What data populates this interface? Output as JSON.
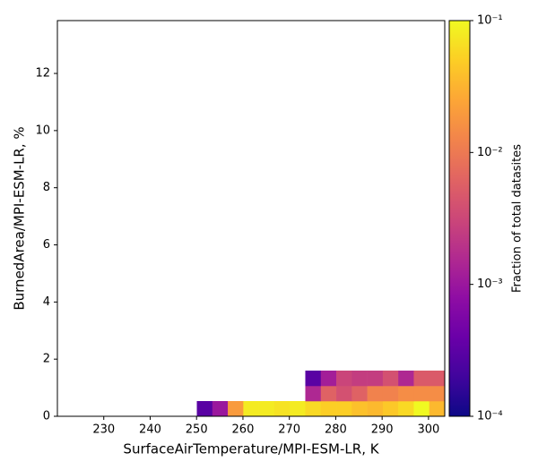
{
  "chart_data": {
    "type": "hist2d",
    "xlabel": "SurfaceAirTemperature/MPI-ESM-LR,  K",
    "ylabel": "BurnedArea/MPI-ESM-LR,  %",
    "colorbar_label": "Fraction of total datasites",
    "xlim": [
      220,
      303.5
    ],
    "ylim": [
      0,
      13.85
    ],
    "xticks": [
      230,
      240,
      250,
      260,
      270,
      280,
      290,
      300
    ],
    "yticks": [
      0,
      2,
      4,
      6,
      8,
      10,
      12
    ],
    "xbins": [
      250.06,
      253.4,
      256.74,
      260.08,
      263.42,
      266.76,
      270.1,
      273.44,
      276.78,
      280.12,
      283.46,
      286.8,
      290.14,
      293.48,
      296.82,
      300.16,
      303.5
    ],
    "ybins": [
      0,
      0.533,
      1.066,
      1.6
    ],
    "values": [
      [
        0.0003,
        0.001,
        0.02,
        0.08,
        0.08,
        0.07,
        0.08,
        0.06,
        0.05,
        0.05,
        0.04,
        0.035,
        0.045,
        0.06,
        0.1,
        0.035
      ],
      [
        null,
        null,
        null,
        null,
        null,
        null,
        null,
        0.0015,
        0.006,
        0.004,
        0.006,
        0.012,
        0.012,
        0.015,
        0.015,
        0.015
      ],
      [
        null,
        null,
        null,
        null,
        null,
        null,
        null,
        0.0003,
        0.0012,
        0.003,
        0.0025,
        0.0025,
        0.004,
        0.0015,
        0.005,
        0.005
      ]
    ],
    "clim": [
      0.0001,
      0.1
    ],
    "color_scale": "log",
    "colormap": [
      "#0d0887",
      "#41049d",
      "#6a00a8",
      "#8f0da4",
      "#b12a90",
      "#cc4778",
      "#e16462",
      "#f2844b",
      "#fca636",
      "#fcce25",
      "#f0f921"
    ],
    "cticks": [
      {
        "value": 0.0001,
        "label": "10⁻⁴"
      },
      {
        "value": 0.001,
        "label": "10⁻³"
      },
      {
        "value": 0.01,
        "label": "10⁻²"
      },
      {
        "value": 0.1,
        "label": "10⁻¹"
      }
    ]
  }
}
